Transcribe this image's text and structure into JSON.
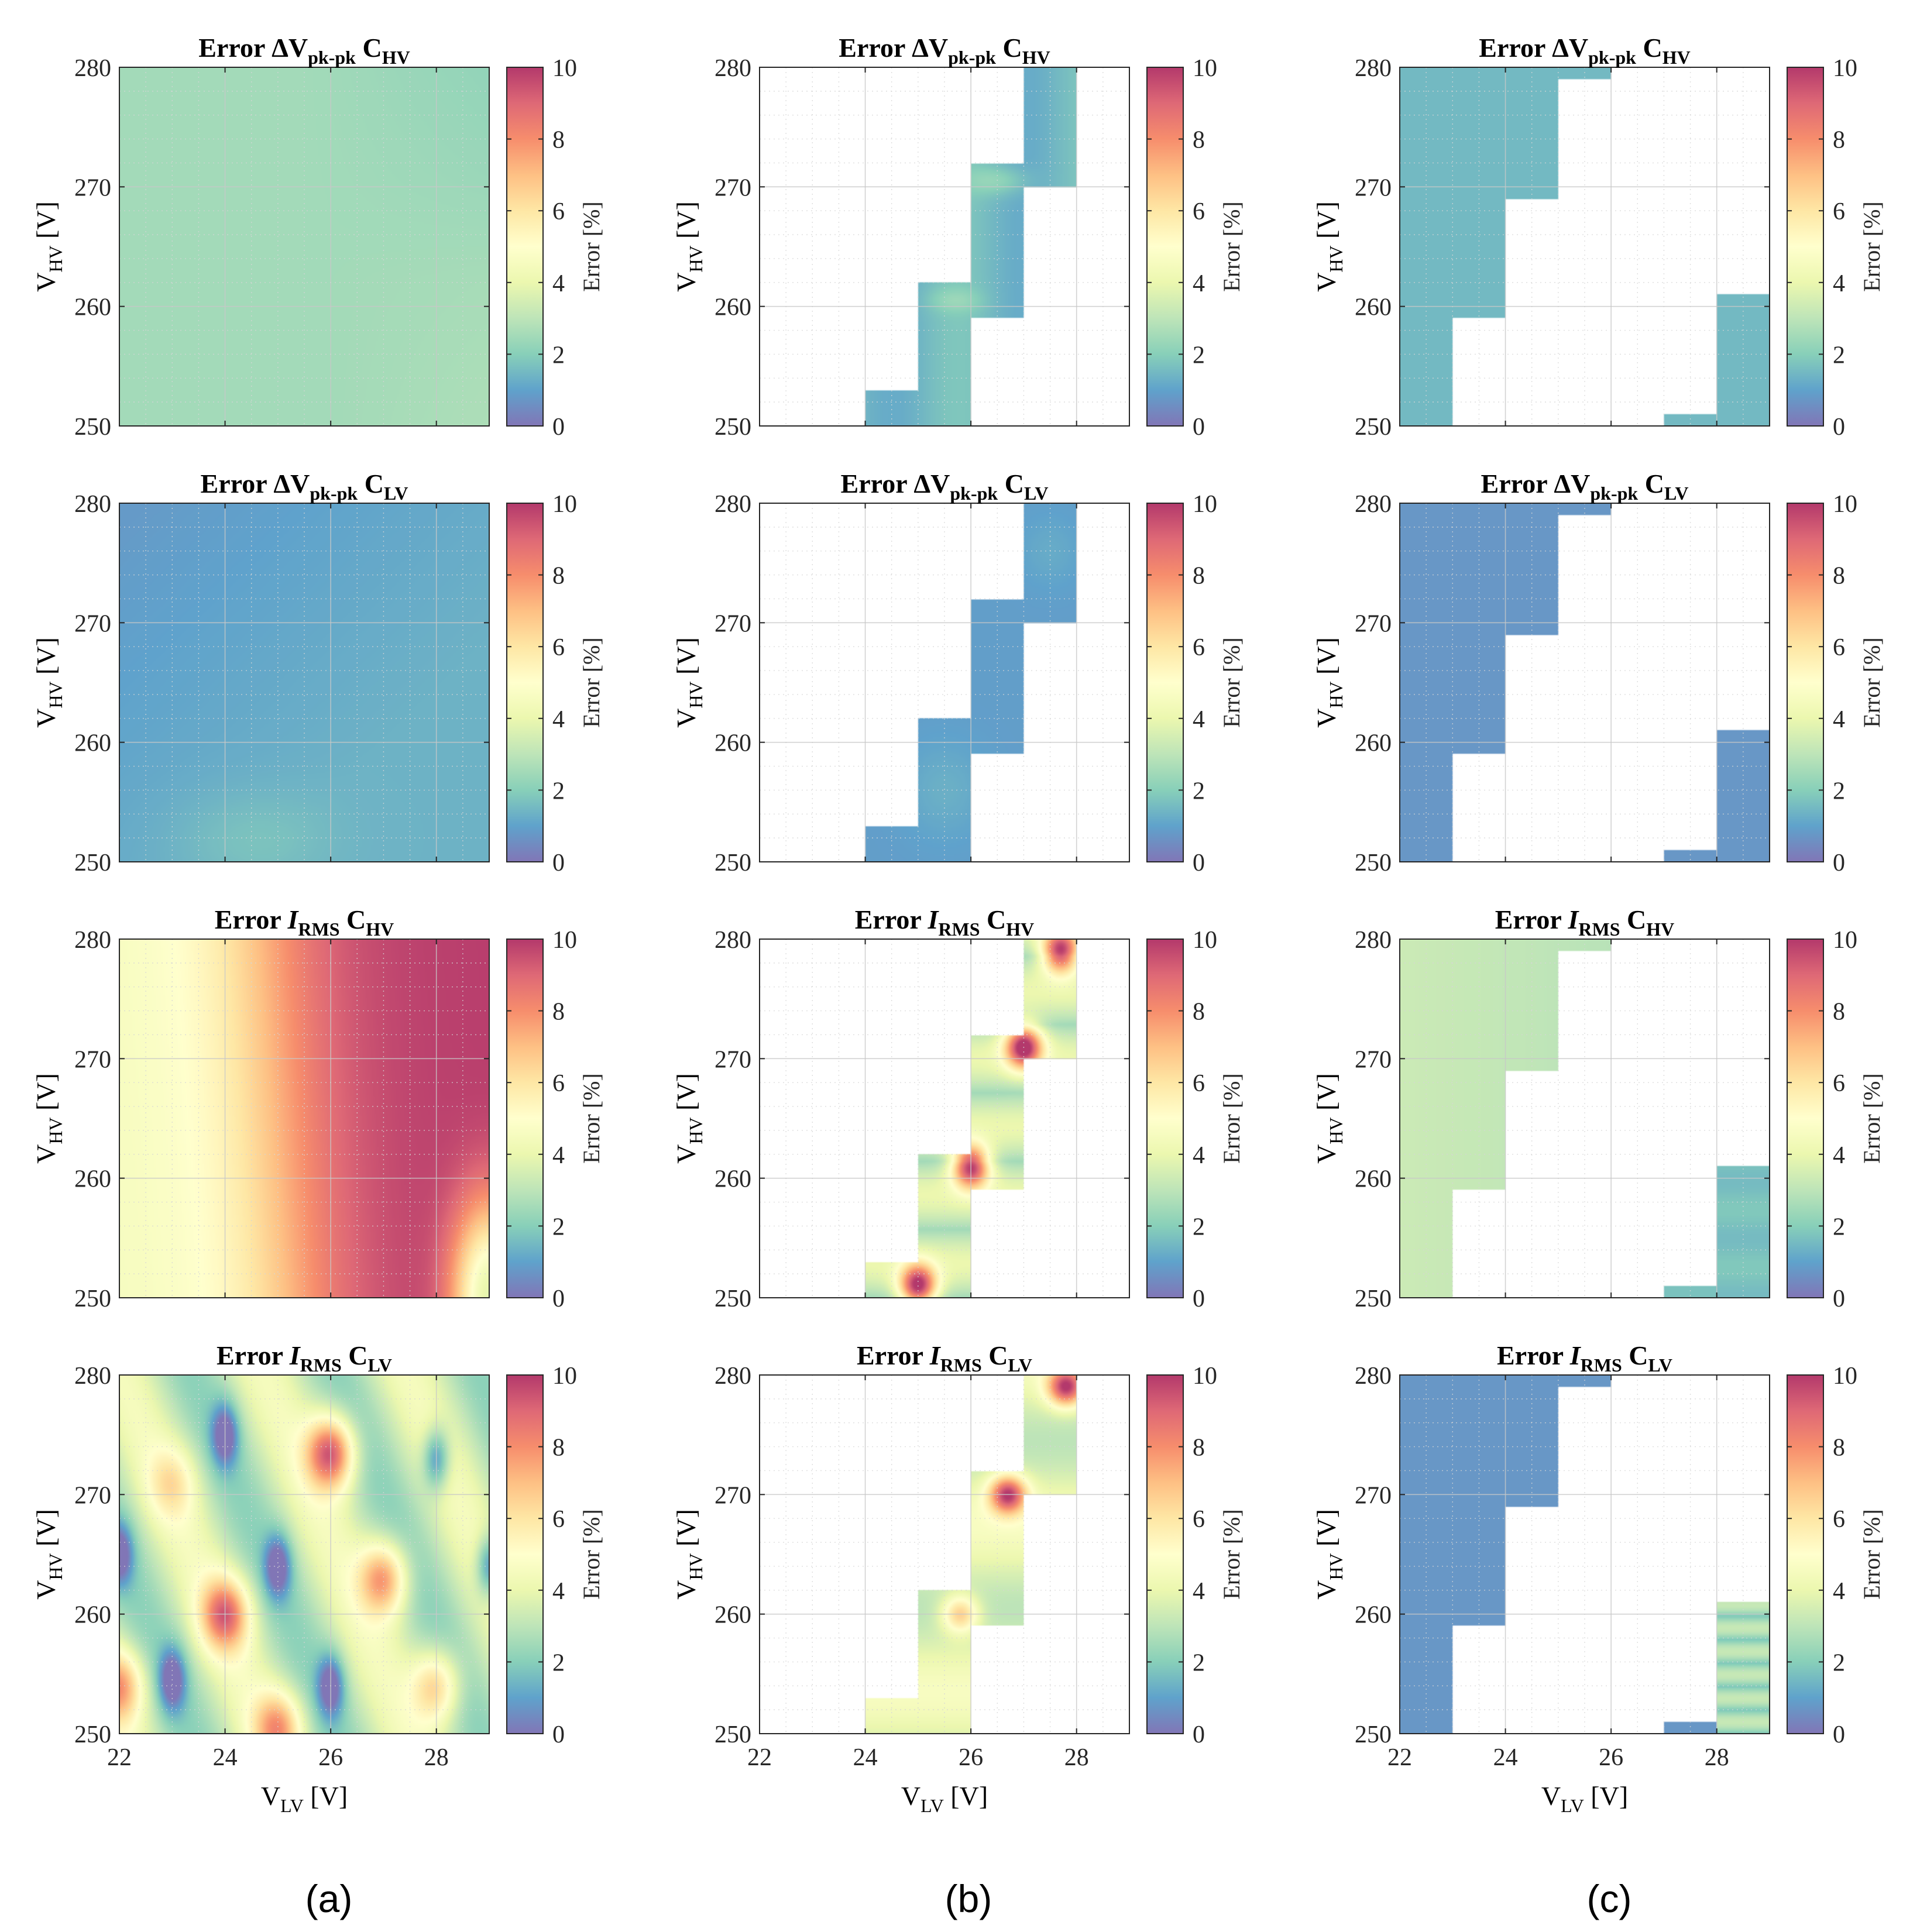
{
  "figure": {
    "column_labels": [
      "(a)",
      "(b)",
      "(c)"
    ]
  },
  "chart_data": {
    "type": "heatmap",
    "xlabel": {
      "main": "V",
      "sub": "LV",
      "unit": " [V]"
    },
    "ylabel": {
      "main": "V",
      "sub": "HV",
      "unit": " [V]"
    },
    "xlim": [
      22,
      29
    ],
    "ylim": [
      250,
      280
    ],
    "xticks": [
      22,
      24,
      26,
      28
    ],
    "yticks": [
      250,
      260,
      270,
      280
    ],
    "x_minor_step": 0.5,
    "y_minor_step": 2,
    "grid": true,
    "colorbar": {
      "label": "Error [%]",
      "range": [
        0,
        10
      ],
      "ticks": [
        0,
        2,
        4,
        6,
        8,
        10
      ],
      "colormap": "spectral",
      "stops": [
        "#5e4fa2",
        "#3288bd",
        "#66c2a5",
        "#abdda4",
        "#e6f598",
        "#ffffbf",
        "#fee08b",
        "#fdae61",
        "#f46d43",
        "#d53e4f",
        "#9e0142"
      ]
    },
    "rows": [
      {
        "quantity": "ΔV",
        "quantity_italic": false,
        "quantity_sub": "pk-pk",
        "component": "C",
        "component_sub": "HV"
      },
      {
        "quantity": "ΔV",
        "quantity_italic": false,
        "quantity_sub": "pk-pk",
        "component": "C",
        "component_sub": "LV"
      },
      {
        "quantity": "I",
        "quantity_italic": true,
        "quantity_sub": "RMS",
        "component": "C",
        "component_sub": "HV"
      },
      {
        "quantity": "I",
        "quantity_italic": true,
        "quantity_sub": "RMS",
        "component": "C",
        "component_sub": "LV"
      }
    ],
    "title_prefix": "Error ",
    "regions": {
      "b_band": [
        {
          "x": [
            24,
            25
          ],
          "y": [
            250,
            253
          ]
        },
        {
          "x": [
            25,
            26
          ],
          "y": [
            250,
            262
          ]
        },
        {
          "x": [
            26,
            27
          ],
          "y": [
            259,
            272
          ]
        },
        {
          "x": [
            27,
            28
          ],
          "y": [
            270,
            280
          ]
        }
      ],
      "c_region": [
        {
          "x": [
            22,
            23
          ],
          "y": [
            250,
            280
          ]
        },
        {
          "x": [
            23,
            24
          ],
          "y": [
            259,
            280
          ]
        },
        {
          "x": [
            24,
            25
          ],
          "y": [
            269,
            280
          ]
        },
        {
          "x": [
            25,
            26
          ],
          "y": [
            279,
            280
          ]
        },
        {
          "x": [
            27,
            28
          ],
          "y": [
            250,
            251
          ]
        },
        {
          "x": [
            28,
            29
          ],
          "y": [
            250,
            261
          ]
        }
      ]
    },
    "panels": [
      {
        "row": 0,
        "col": 0,
        "region": "full",
        "model": "vhv_a"
      },
      {
        "row": 0,
        "col": 1,
        "region": "b_band",
        "model": "vhv_b"
      },
      {
        "row": 0,
        "col": 2,
        "region": "c_region",
        "model": "vhv_c"
      },
      {
        "row": 1,
        "col": 0,
        "region": "full",
        "model": "vlv_a"
      },
      {
        "row": 1,
        "col": 1,
        "region": "b_band",
        "model": "vlv_b"
      },
      {
        "row": 1,
        "col": 2,
        "region": "c_region",
        "model": "vlv_c"
      },
      {
        "row": 2,
        "col": 0,
        "region": "full",
        "model": "ihv_a"
      },
      {
        "row": 2,
        "col": 1,
        "region": "b_band",
        "model": "ihv_b"
      },
      {
        "row": 2,
        "col": 2,
        "region": "c_region",
        "model": "ihv_c"
      },
      {
        "row": 3,
        "col": 0,
        "region": "full",
        "model": "ilv_a"
      },
      {
        "row": 3,
        "col": 1,
        "region": "b_band",
        "model": "ilv_b"
      },
      {
        "row": 3,
        "col": 2,
        "region": "c_region",
        "model": "ilv_c"
      }
    ],
    "hotspots": {
      "ihv_b": [
        [
          25.0,
          251.0
        ],
        [
          26.0,
          261.0
        ],
        [
          27.0,
          271.0
        ],
        [
          27.7,
          279.0
        ]
      ],
      "ilv_b": [
        [
          26.7,
          270.0
        ],
        [
          27.8,
          279.0
        ],
        [
          25.8,
          260.0
        ]
      ],
      "ilv_a_peaks": [
        [
          26.0,
          273.5,
          9.5
        ],
        [
          27.0,
          263.0,
          8.0
        ],
        [
          24.0,
          260.0,
          8.5
        ],
        [
          25.0,
          250.5,
          7.5
        ],
        [
          22.0,
          254.0,
          7.5
        ],
        [
          28.0,
          254.0,
          7.0
        ],
        [
          23.0,
          271.0,
          5.5
        ]
      ],
      "ilv_a_valleys": [
        [
          24.0,
          275.0
        ],
        [
          28.0,
          273.0
        ],
        [
          25.0,
          264.0
        ],
        [
          23.0,
          254.5
        ],
        [
          26.0,
          254.0
        ],
        [
          22.0,
          265.0
        ],
        [
          29.0,
          264.0
        ]
      ]
    }
  }
}
